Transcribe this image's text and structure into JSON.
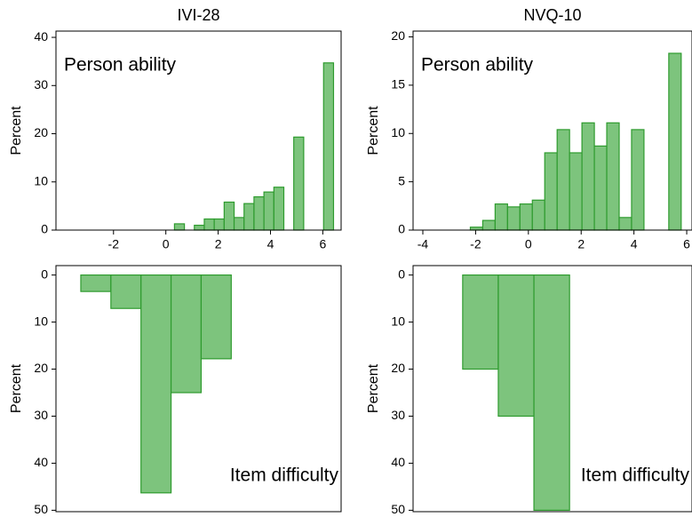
{
  "chart_data": [
    {
      "type": "histogram",
      "title": "IVI-28",
      "ylabel": "Percent",
      "annotation": "Person ability",
      "bins": [
        0.33,
        0.71,
        1.09,
        1.47,
        1.85,
        2.23,
        2.61,
        2.99,
        3.37,
        3.75,
        4.13,
        4.51,
        4.89,
        5.27,
        5.65,
        6.03,
        6.41
      ],
      "values": [
        1.3,
        0,
        1,
        2.3,
        2.3,
        5.8,
        2.6,
        5.5,
        6.9,
        7.9,
        8.9,
        0,
        19.3,
        0,
        0,
        34.7
      ],
      "color": "#7dc47d",
      "edgecolor": "#2e9b2e",
      "xlim": [
        -4.2,
        6.7
      ],
      "xticks": [
        -2,
        0,
        2,
        4,
        6
      ],
      "ylim": [
        0,
        41.3
      ],
      "yticks": [
        0,
        10,
        20,
        30,
        40
      ],
      "inverted": false
    },
    {
      "type": "histogram",
      "title": "NVQ-10",
      "ylabel": "Percent",
      "annotation": "Person ability",
      "bins": [
        -2.2,
        -1.73,
        -1.26,
        -0.79,
        -0.32,
        0.15,
        0.62,
        1.09,
        1.56,
        2.03,
        2.5,
        2.97,
        3.44,
        3.91,
        4.38,
        4.85,
        5.32,
        5.79
      ],
      "values": [
        0.3,
        1.0,
        2.7,
        2.4,
        2.7,
        3.1,
        8.0,
        10.4,
        8.0,
        11.1,
        8.7,
        11.1,
        1.3,
        10.4,
        0,
        0,
        18.3
      ],
      "color": "#7dc47d",
      "edgecolor": "#2e9b2e",
      "xlim": [
        -4.37,
        6.2
      ],
      "xticks": [
        -4,
        -2,
        0,
        2,
        4,
        6
      ],
      "ylim": [
        0,
        20.6
      ],
      "yticks": [
        0,
        5,
        10,
        15,
        20
      ],
      "inverted": false
    },
    {
      "type": "histogram",
      "ylabel": "Percent",
      "annotation": "Item difficulty",
      "bins": [
        -3.25,
        -2.1,
        -0.95,
        0.2,
        1.35,
        2.5
      ],
      "values": [
        3.5,
        7.1,
        46.3,
        25,
        17.8
      ],
      "color": "#7dc47d",
      "edgecolor": "#2e9b2e",
      "xlim": [
        -4.2,
        6.7
      ],
      "ylim": [
        -2,
        50.3
      ],
      "yticks": [
        0,
        10,
        20,
        30,
        40,
        50
      ],
      "inverted": true
    },
    {
      "type": "histogram",
      "ylabel": "Percent",
      "annotation": "Item difficulty",
      "bins": [
        -2.49,
        -1.14,
        0.21,
        1.56
      ],
      "values": [
        20,
        30,
        50
      ],
      "color": "#7dc47d",
      "edgecolor": "#2e9b2e",
      "xlim": [
        -4.37,
        6.2
      ],
      "ylim": [
        -2,
        50.3
      ],
      "yticks": [
        0,
        10,
        20,
        30,
        40,
        50
      ],
      "inverted": true
    }
  ]
}
